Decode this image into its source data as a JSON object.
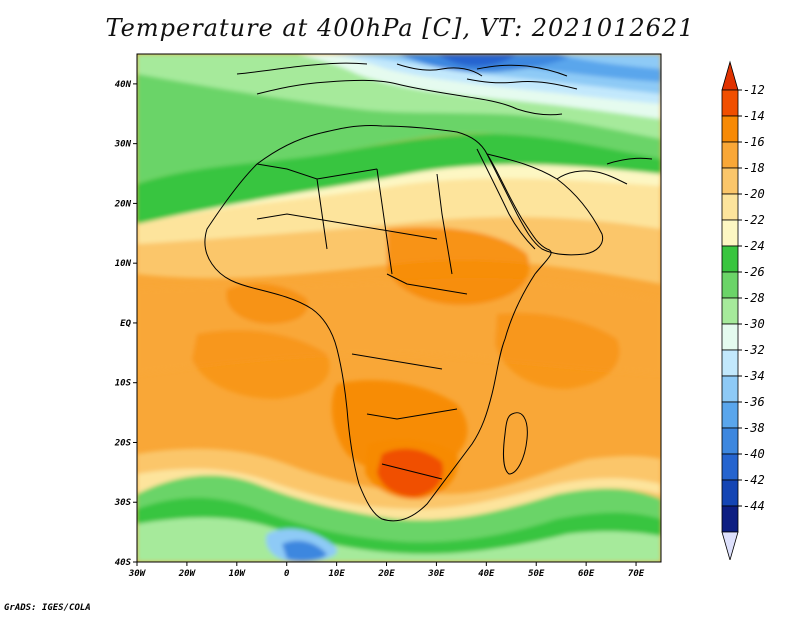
{
  "title": "Temperature at 400hPa [C], VT: 2021012621",
  "footer": "GrADS: IGES/COLA",
  "map": {
    "lon_range": [
      -30,
      75
    ],
    "lat_range": [
      -40,
      45
    ],
    "lon_ticks": [
      {
        "value": -30,
        "label": "30W"
      },
      {
        "value": -20,
        "label": "20W"
      },
      {
        "value": -10,
        "label": "10W"
      },
      {
        "value": 0,
        "label": "0"
      },
      {
        "value": 10,
        "label": "10E"
      },
      {
        "value": 20,
        "label": "20E"
      },
      {
        "value": 30,
        "label": "30E"
      },
      {
        "value": 40,
        "label": "40E"
      },
      {
        "value": 50,
        "label": "50E"
      },
      {
        "value": 60,
        "label": "60E"
      },
      {
        "value": 70,
        "label": "70E"
      }
    ],
    "lat_ticks": [
      {
        "value": 40,
        "label": "40N"
      },
      {
        "value": 30,
        "label": "30N"
      },
      {
        "value": 20,
        "label": "20N"
      },
      {
        "value": 10,
        "label": "10N"
      },
      {
        "value": 0,
        "label": "EQ"
      },
      {
        "value": -10,
        "label": "10S"
      },
      {
        "value": -20,
        "label": "20S"
      },
      {
        "value": -30,
        "label": "30S"
      },
      {
        "value": -40,
        "label": "40S"
      }
    ]
  },
  "colorbar": {
    "labels": [
      "-12",
      "-14",
      "-16",
      "-18",
      "-20",
      "-22",
      "-24",
      "-26",
      "-28",
      "-30",
      "-32",
      "-34",
      "-36",
      "-38",
      "-40",
      "-42",
      "-44"
    ],
    "colors_top_to_bottom": [
      "#f04f00",
      "#f78a05",
      "#f9a737",
      "#fbc66a",
      "#fde49c",
      "#fdf7c3",
      "#39c53f",
      "#6bd468",
      "#a6ea9b",
      "#e5fbef",
      "#c2e8fc",
      "#8ecaf6",
      "#5aa6ec",
      "#3d87df",
      "#2564cf",
      "#1445b4",
      "#0d1e82"
    ],
    "top_arrow_color": "#e03200",
    "bottom_arrow_color": "#dde0fc"
  },
  "palette": {
    "ocean_warm": "#f9a737",
    "land_warm": "#f9a737",
    "hot": "#f04f00",
    "coast_line": "#000000"
  }
}
